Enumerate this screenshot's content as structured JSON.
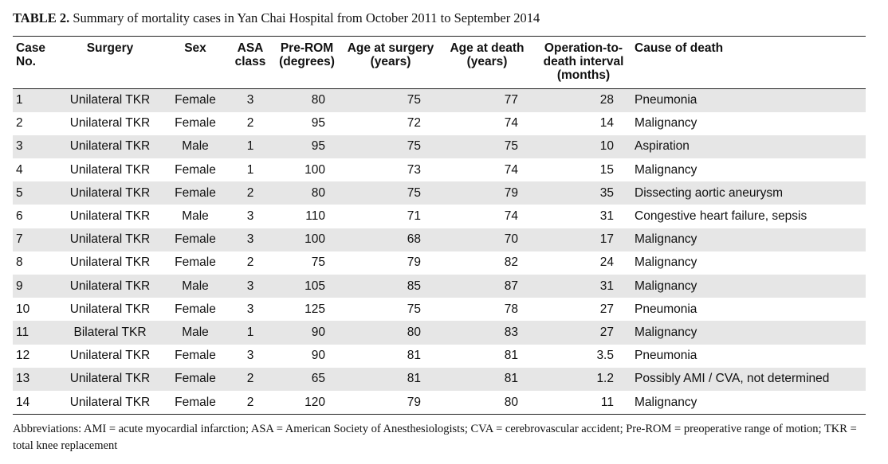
{
  "caption": {
    "label": "TABLE 2.",
    "text": "Summary of mortality cases in Yan Chai Hospital from October 2011 to September 2014"
  },
  "headers": {
    "case_no": "Case No.",
    "surgery": "Surgery",
    "sex": "Sex",
    "asa": "ASA class",
    "prerom": "Pre-ROM (degrees)",
    "age_surgery": "Age at surgery (years)",
    "age_death": "Age at death (years)",
    "interval": "Operation-to-death interval (months)",
    "cause": "Cause of death"
  },
  "rows": [
    {
      "case": "1",
      "surgery": "Unilateral TKR",
      "sex": "Female",
      "asa": "3",
      "prerom": "80",
      "age_surgery": "75",
      "age_death": "77",
      "interval": "28",
      "cause": "Pneumonia"
    },
    {
      "case": "2",
      "surgery": "Unilateral TKR",
      "sex": "Female",
      "asa": "2",
      "prerom": "95",
      "age_surgery": "72",
      "age_death": "74",
      "interval": "14",
      "cause": "Malignancy"
    },
    {
      "case": "3",
      "surgery": "Unilateral TKR",
      "sex": "Male",
      "asa": "1",
      "prerom": "95",
      "age_surgery": "75",
      "age_death": "75",
      "interval": "10",
      "cause": "Aspiration"
    },
    {
      "case": "4",
      "surgery": "Unilateral TKR",
      "sex": "Female",
      "asa": "1",
      "prerom": "100",
      "age_surgery": "73",
      "age_death": "74",
      "interval": "15",
      "cause": "Malignancy"
    },
    {
      "case": "5",
      "surgery": "Unilateral TKR",
      "sex": "Female",
      "asa": "2",
      "prerom": "80",
      "age_surgery": "75",
      "age_death": "79",
      "interval": "35",
      "cause": "Dissecting aortic aneurysm"
    },
    {
      "case": "6",
      "surgery": "Unilateral TKR",
      "sex": "Male",
      "asa": "3",
      "prerom": "110",
      "age_surgery": "71",
      "age_death": "74",
      "interval": "31",
      "cause": "Congestive heart failure, sepsis"
    },
    {
      "case": "7",
      "surgery": "Unilateral TKR",
      "sex": "Female",
      "asa": "3",
      "prerom": "100",
      "age_surgery": "68",
      "age_death": "70",
      "interval": "17",
      "cause": "Malignancy"
    },
    {
      "case": "8",
      "surgery": "Unilateral TKR",
      "sex": "Female",
      "asa": "2",
      "prerom": "75",
      "age_surgery": "79",
      "age_death": "82",
      "interval": "24",
      "cause": "Malignancy"
    },
    {
      "case": "9",
      "surgery": "Unilateral TKR",
      "sex": "Male",
      "asa": "3",
      "prerom": "105",
      "age_surgery": "85",
      "age_death": "87",
      "interval": "31",
      "cause": "Malignancy"
    },
    {
      "case": "10",
      "surgery": "Unilateral TKR",
      "sex": "Female",
      "asa": "3",
      "prerom": "125",
      "age_surgery": "75",
      "age_death": "78",
      "interval": "27",
      "cause": "Pneumonia"
    },
    {
      "case": "11",
      "surgery": "Bilateral TKR",
      "sex": "Male",
      "asa": "1",
      "prerom": "90",
      "age_surgery": "80",
      "age_death": "83",
      "interval": "27",
      "cause": "Malignancy"
    },
    {
      "case": "12",
      "surgery": "Unilateral TKR",
      "sex": "Female",
      "asa": "3",
      "prerom": "90",
      "age_surgery": "81",
      "age_death": "81",
      "interval": "3.5",
      "cause": "Pneumonia"
    },
    {
      "case": "13",
      "surgery": "Unilateral TKR",
      "sex": "Female",
      "asa": "2",
      "prerom": "65",
      "age_surgery": "81",
      "age_death": "81",
      "interval": "1.2",
      "cause": "Possibly AMI / CVA, not determined"
    },
    {
      "case": "14",
      "surgery": "Unilateral TKR",
      "sex": "Female",
      "asa": "2",
      "prerom": "120",
      "age_surgery": "79",
      "age_death": "80",
      "interval": "11",
      "cause": "Malignancy"
    }
  ],
  "footnote": "Abbreviations: AMI = acute myocardial infarction; ASA = American Society of Anesthesiologists; CVA = cerebrovascular accident; Pre-ROM = preoperative range of motion; TKR = total knee replacement",
  "colors": {
    "shade": "#e6e6e6",
    "rule": "#222222"
  }
}
